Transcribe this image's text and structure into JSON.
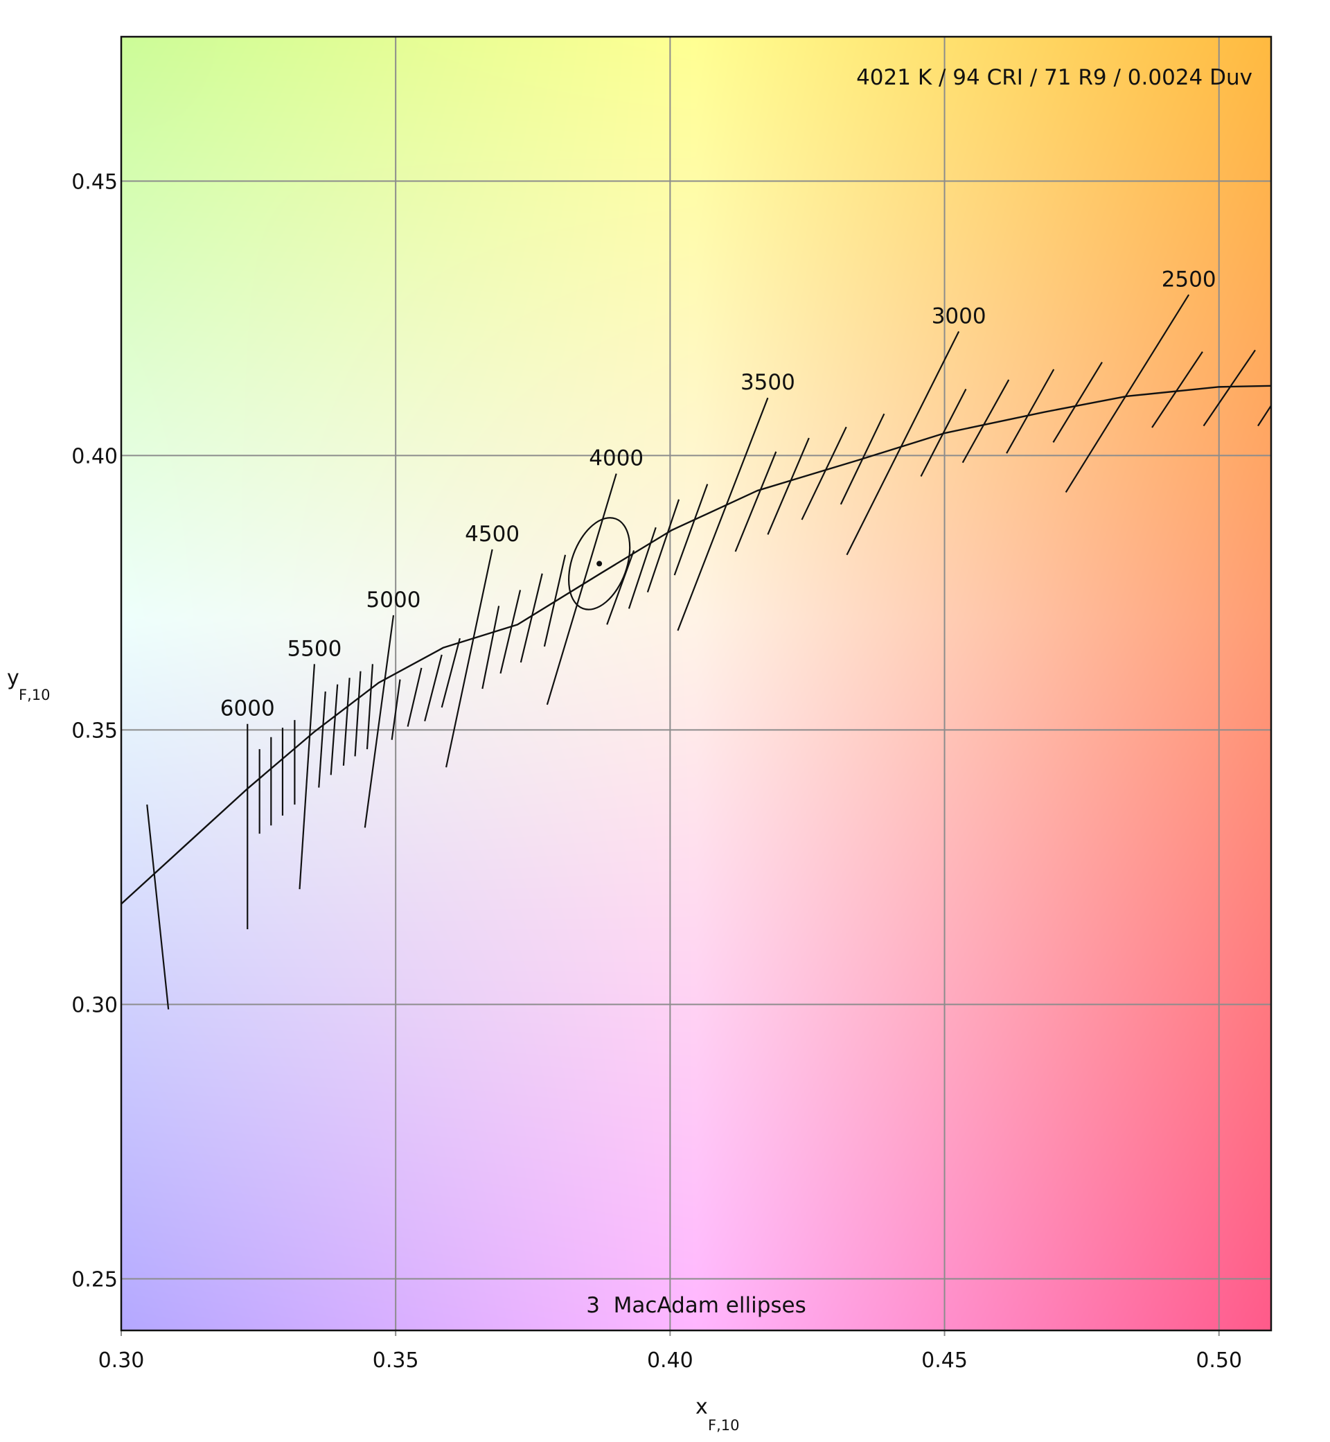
{
  "chart_data": {
    "type": "line",
    "title": "",
    "annotation_top": "4021 K / 94 CRI / 71 R9 / 0.0024 Duv",
    "annotation_bottom": "3  MacAdam ellipses",
    "xlabel": "x",
    "xlabel_sub": "F,10",
    "ylabel": "y",
    "ylabel_sub": "F,10",
    "xlim": [
      0.3,
      0.5095
    ],
    "ylim": [
      0.2406,
      0.4763
    ],
    "xticks": [
      "0.30",
      "0.35",
      "0.40",
      "0.45",
      "0.50"
    ],
    "yticks": [
      "0.25",
      "0.30",
      "0.35",
      "0.40",
      "0.45"
    ],
    "grid": true,
    "background_colors": {
      "top_left": "#ccfc98",
      "top_center": "#ffff92",
      "top_right": "#ffba40",
      "mid_left": "#eefffc",
      "mid_center": "#fff3e6",
      "mid_right": "#ff9c72",
      "bottom_left": "#b4a8ff",
      "bottom_center": "#ffb6ff",
      "bottom_right": "#ff5a8a"
    },
    "planckian_locus": [
      [
        0.3,
        0.3183
      ],
      [
        0.3116,
        0.3289
      ],
      [
        0.323,
        0.3393
      ],
      [
        0.3351,
        0.3496
      ],
      [
        0.3469,
        0.3586
      ],
      [
        0.3587,
        0.365
      ],
      [
        0.3722,
        0.3692
      ],
      [
        0.3873,
        0.3785
      ],
      [
        0.4003,
        0.3864
      ],
      [
        0.4159,
        0.3936
      ],
      [
        0.4344,
        0.3992
      ],
      [
        0.4501,
        0.4041
      ],
      [
        0.4681,
        0.4079
      ],
      [
        0.4832,
        0.4108
      ],
      [
        0.5,
        0.4125
      ],
      [
        0.5095,
        0.4127
      ]
    ],
    "isotherms": [
      {
        "x": [
          0.3047,
          0.3086
        ],
        "y": [
          0.3364,
          0.2991
        ]
      },
      {
        "x": [
          0.323,
          0.323
        ],
        "y": [
          0.3511,
          0.3137
        ],
        "cct": "6000"
      },
      {
        "x": [
          0.3252,
          0.3252
        ],
        "y": [
          0.3465,
          0.3311
        ]
      },
      {
        "x": [
          0.3273,
          0.3273
        ],
        "y": [
          0.3487,
          0.3326
        ]
      },
      {
        "x": [
          0.3294,
          0.3294
        ],
        "y": [
          0.3504,
          0.3344
        ]
      },
      {
        "x": [
          0.3316,
          0.3316
        ],
        "y": [
          0.3518,
          0.3364
        ]
      },
      {
        "x": [
          0.3352,
          0.3325
        ],
        "y": [
          0.362,
          0.321
        ],
        "cct": "5500"
      },
      {
        "x": [
          0.3372,
          0.336
        ],
        "y": [
          0.357,
          0.3395
        ]
      },
      {
        "x": [
          0.3394,
          0.3382
        ],
        "y": [
          0.3583,
          0.3418
        ]
      },
      {
        "x": [
          0.3416,
          0.3405
        ],
        "y": [
          0.3595,
          0.3435
        ]
      },
      {
        "x": [
          0.3436,
          0.3426
        ],
        "y": [
          0.3607,
          0.3452
        ]
      },
      {
        "x": [
          0.3458,
          0.3448
        ],
        "y": [
          0.362,
          0.3465
        ]
      },
      {
        "x": [
          0.3496,
          0.3444
        ],
        "y": [
          0.3709,
          0.3322
        ],
        "cct": "5000"
      },
      {
        "x": [
          0.3508,
          0.3493
        ],
        "y": [
          0.3592,
          0.3482
        ]
      },
      {
        "x": [
          0.3547,
          0.3522
        ],
        "y": [
          0.3613,
          0.3506
        ]
      },
      {
        "x": [
          0.3584,
          0.3553
        ],
        "y": [
          0.3637,
          0.3516
        ]
      },
      {
        "x": [
          0.3617,
          0.3584
        ],
        "y": [
          0.3667,
          0.3541
        ]
      },
      {
        "x": [
          0.3676,
          0.3592
        ],
        "y": [
          0.3829,
          0.3432
        ],
        "cct": "4500"
      },
      {
        "x": [
          0.3688,
          0.3658
        ],
        "y": [
          0.3726,
          0.3575
        ]
      },
      {
        "x": [
          0.3727,
          0.3691
        ],
        "y": [
          0.3755,
          0.3603
        ]
      },
      {
        "x": [
          0.3767,
          0.3728
        ],
        "y": [
          0.3785,
          0.3623
        ]
      },
      {
        "x": [
          0.3809,
          0.3771
        ],
        "y": [
          0.3819,
          0.3652
        ]
      },
      {
        "x": [
          0.3902,
          0.3776
        ],
        "y": [
          0.3967,
          0.3546
        ],
        "cct": "4000"
      },
      {
        "x": [
          0.3934,
          0.3885
        ],
        "y": [
          0.3827,
          0.3692
        ]
      },
      {
        "x": [
          0.3974,
          0.3925
        ],
        "y": [
          0.3869,
          0.3721
        ]
      },
      {
        "x": [
          0.4016,
          0.3959
        ],
        "y": [
          0.392,
          0.3751
        ]
      },
      {
        "x": [
          0.4068,
          0.4008
        ],
        "y": [
          0.3948,
          0.3782
        ]
      },
      {
        "x": [
          0.4178,
          0.4014
        ],
        "y": [
          0.4105,
          0.3681
        ],
        "cct": "3500"
      },
      {
        "x": [
          0.4193,
          0.4119
        ],
        "y": [
          0.4007,
          0.3825
        ]
      },
      {
        "x": [
          0.4253,
          0.4178
        ],
        "y": [
          0.4032,
          0.3856
        ]
      },
      {
        "x": [
          0.4321,
          0.424
        ],
        "y": [
          0.4052,
          0.3883
        ]
      },
      {
        "x": [
          0.439,
          0.4311
        ],
        "y": [
          0.4076,
          0.3911
        ]
      },
      {
        "x": [
          0.4526,
          0.4322
        ],
        "y": [
          0.4226,
          0.3819
        ],
        "cct": "3000"
      },
      {
        "x": [
          0.4539,
          0.4457
        ],
        "y": [
          0.4121,
          0.3962
        ]
      },
      {
        "x": [
          0.4617,
          0.4533
        ],
        "y": [
          0.4138,
          0.3987
        ]
      },
      {
        "x": [
          0.4699,
          0.4613
        ],
        "y": [
          0.4157,
          0.4004
        ]
      },
      {
        "x": [
          0.4787,
          0.4698
        ],
        "y": [
          0.417,
          0.4024
        ]
      },
      {
        "x": [
          0.4945,
          0.4721
        ],
        "y": [
          0.4293,
          0.3933
        ],
        "cct": "2500"
      },
      {
        "x": [
          0.497,
          0.4878
        ],
        "y": [
          0.4189,
          0.4051
        ]
      },
      {
        "x": [
          0.5066,
          0.4972
        ],
        "y": [
          0.4192,
          0.4054
        ]
      },
      {
        "x": [
          0.5095,
          0.5071
        ],
        "y": [
          0.4091,
          0.4054
        ]
      }
    ],
    "measured_point": {
      "x": 0.3871,
      "y": 0.3803
    },
    "macadam_ellipse": {
      "cx": 0.3871,
      "cy": 0.3803,
      "semi_minor": 0.005,
      "semi_major": 0.0087,
      "tilt_deg": 20
    }
  }
}
